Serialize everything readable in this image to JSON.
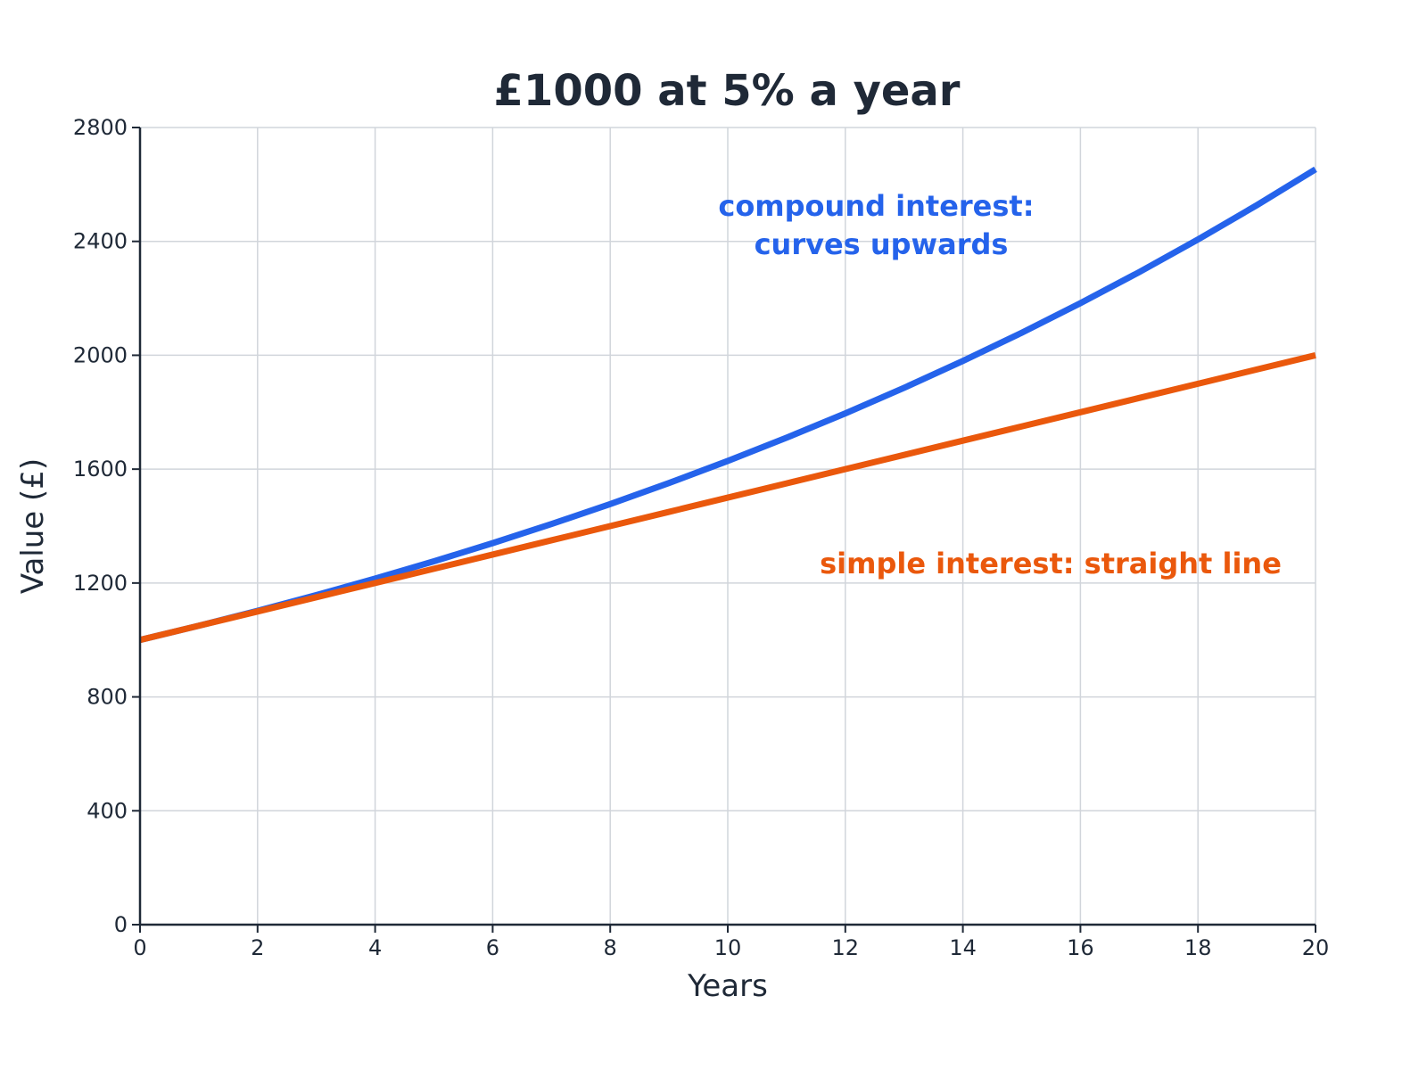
{
  "chart_data": {
    "type": "line",
    "title": "£1000 at 5% a year",
    "xlabel": "Years",
    "ylabel": "Value (£)",
    "xlim": [
      0,
      20
    ],
    "ylim": [
      0,
      2800
    ],
    "x_ticks": [
      0,
      2,
      4,
      6,
      8,
      10,
      12,
      14,
      16,
      18,
      20
    ],
    "y_ticks": [
      0,
      400,
      800,
      1200,
      1600,
      2000,
      2400,
      2800
    ],
    "x_tick_labels": [
      "0",
      "2",
      "4",
      "6",
      "8",
      "10",
      "12",
      "14",
      "16",
      "18",
      "20"
    ],
    "y_tick_labels": [
      "0",
      "400",
      "800",
      "1200",
      "1600",
      "2000",
      "2400",
      "2800"
    ],
    "grid": true,
    "x": [
      0,
      1,
      2,
      3,
      4,
      5,
      6,
      7,
      8,
      9,
      10,
      11,
      12,
      13,
      14,
      15,
      16,
      17,
      18,
      19,
      20
    ],
    "series": [
      {
        "key": "compound",
        "color": "#2563eb",
        "values": [
          1000,
          1050,
          1102.5,
          1157.63,
          1215.51,
          1276.28,
          1340.1,
          1407.1,
          1477.46,
          1551.33,
          1628.89,
          1710.34,
          1795.86,
          1885.65,
          1979.93,
          2078.93,
          2182.87,
          2292.02,
          2406.62,
          2526.95,
          2653.3
        ]
      },
      {
        "key": "simple",
        "color": "#ea580c",
        "values": [
          1000,
          1050,
          1100,
          1150,
          1200,
          1250,
          1300,
          1350,
          1400,
          1450,
          1500,
          1550,
          1600,
          1650,
          1700,
          1750,
          1800,
          1850,
          1900,
          1950,
          2000
        ]
      }
    ],
    "annotations": [
      {
        "key": "compound",
        "lines": [
          "compound interest:",
          "curves upwards"
        ],
        "color": "#2563eb"
      },
      {
        "key": "simple",
        "lines": [
          "simple interest: straight line"
        ],
        "color": "#ea580c"
      }
    ]
  }
}
